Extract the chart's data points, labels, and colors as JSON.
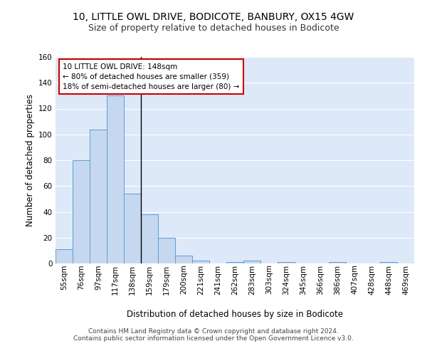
{
  "title1": "10, LITTLE OWL DRIVE, BODICOTE, BANBURY, OX15 4GW",
  "title2": "Size of property relative to detached houses in Bodicote",
  "xlabel": "Distribution of detached houses by size in Bodicote",
  "ylabel": "Number of detached properties",
  "bar_labels": [
    "55sqm",
    "76sqm",
    "97sqm",
    "117sqm",
    "138sqm",
    "159sqm",
    "179sqm",
    "200sqm",
    "221sqm",
    "241sqm",
    "262sqm",
    "283sqm",
    "303sqm",
    "324sqm",
    "345sqm",
    "366sqm",
    "386sqm",
    "407sqm",
    "428sqm",
    "448sqm",
    "469sqm"
  ],
  "bar_heights": [
    11,
    80,
    104,
    130,
    54,
    38,
    20,
    6,
    2,
    0,
    1,
    2,
    0,
    1,
    0,
    0,
    1,
    0,
    0,
    1,
    0
  ],
  "bar_color": "#c5d8f0",
  "bar_edge_color": "#5a9fd4",
  "vline_color": "#000000",
  "annotation_line1": "10 LITTLE OWL DRIVE: 148sqm",
  "annotation_line2": "← 80% of detached houses are smaller (359)",
  "annotation_line3": "18% of semi-detached houses are larger (80) →",
  "annotation_box_color": "#ffffff",
  "annotation_box_edge": "#cc0000",
  "ylim": [
    0,
    160
  ],
  "yticks": [
    0,
    20,
    40,
    60,
    80,
    100,
    120,
    140,
    160
  ],
  "bg_color": "#dde8f8",
  "grid_color": "#ffffff",
  "footer_text": "Contains HM Land Registry data © Crown copyright and database right 2024.\nContains public sector information licensed under the Open Government Licence v3.0.",
  "title1_fontsize": 10,
  "title2_fontsize": 9,
  "axis_label_fontsize": 8.5,
  "tick_fontsize": 7.5,
  "footer_fontsize": 6.5,
  "annotation_fontsize": 7.5
}
